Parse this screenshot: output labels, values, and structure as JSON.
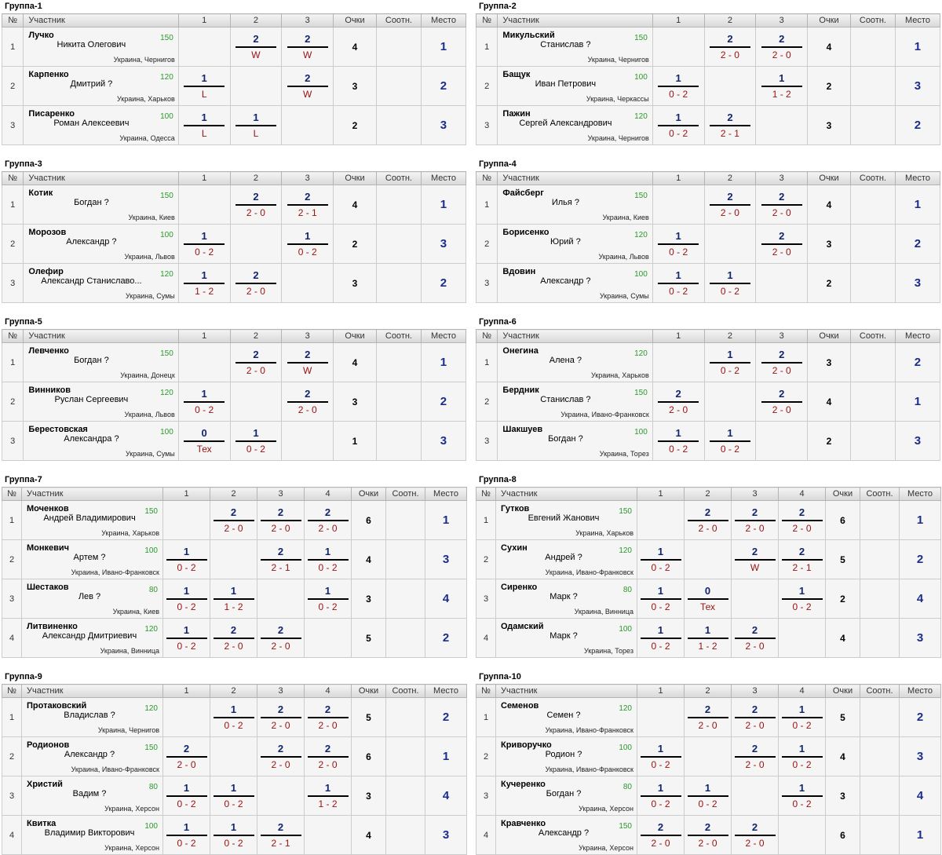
{
  "headers": {
    "num": "№",
    "player": "Участник",
    "points": "Очки",
    "ratio": "Соотн.",
    "place": "Место"
  },
  "groups": [
    {
      "title": "Группа-1",
      "cols": [
        "1",
        "2",
        "3"
      ],
      "players": [
        {
          "num": "1",
          "surname": "Лучко",
          "name": "Никита Олегович",
          "rating": "150",
          "city": "Украина, Чернигов",
          "results": [
            null,
            {
              "t": "2",
              "b": "W"
            },
            {
              "t": "2",
              "b": "W"
            }
          ],
          "points": "4",
          "ratio": "",
          "place": "1"
        },
        {
          "num": "2",
          "surname": "Карпенко",
          "name": "Дмитрий ?",
          "rating": "120",
          "city": "Украина, Харьков",
          "results": [
            {
              "t": "1",
              "b": "L"
            },
            null,
            {
              "t": "2",
              "b": "W"
            }
          ],
          "points": "3",
          "ratio": "",
          "place": "2"
        },
        {
          "num": "3",
          "surname": "Писаренко",
          "name": "Роман Алексеевич",
          "rating": "100",
          "city": "Украина, Одесса",
          "results": [
            {
              "t": "1",
              "b": "L"
            },
            {
              "t": "1",
              "b": "L"
            },
            null
          ],
          "points": "2",
          "ratio": "",
          "place": "3"
        }
      ]
    },
    {
      "title": "Группа-2",
      "cols": [
        "1",
        "2",
        "3"
      ],
      "players": [
        {
          "num": "1",
          "surname": "Микульский",
          "name": "Станислав ?",
          "rating": "150",
          "city": "Украина, Чернигов",
          "results": [
            null,
            {
              "t": "2",
              "b": "2 - 0"
            },
            {
              "t": "2",
              "b": "2 - 0"
            }
          ],
          "points": "4",
          "ratio": "",
          "place": "1"
        },
        {
          "num": "2",
          "surname": "Бащук",
          "name": "Иван Петрович",
          "rating": "100",
          "city": "Украина, Черкассы",
          "results": [
            {
              "t": "1",
              "b": "0 - 2"
            },
            null,
            {
              "t": "1",
              "b": "1 - 2"
            }
          ],
          "points": "2",
          "ratio": "",
          "place": "3"
        },
        {
          "num": "3",
          "surname": "Пажин",
          "name": "Сергей Александрович",
          "rating": "120",
          "city": "Украина, Чернигов",
          "results": [
            {
              "t": "1",
              "b": "0 - 2"
            },
            {
              "t": "2",
              "b": "2 - 1"
            },
            null
          ],
          "points": "3",
          "ratio": "",
          "place": "2"
        }
      ]
    },
    {
      "title": "Группа-3",
      "cols": [
        "1",
        "2",
        "3"
      ],
      "players": [
        {
          "num": "1",
          "surname": "Котик",
          "name": "Богдан ?",
          "rating": "150",
          "city": "Украина, Киев",
          "results": [
            null,
            {
              "t": "2",
              "b": "2 - 0"
            },
            {
              "t": "2",
              "b": "2 - 1"
            }
          ],
          "points": "4",
          "ratio": "",
          "place": "1"
        },
        {
          "num": "2",
          "surname": "Морозов",
          "name": "Александр ?",
          "rating": "100",
          "city": "Украина, Львов",
          "results": [
            {
              "t": "1",
              "b": "0 - 2"
            },
            null,
            {
              "t": "1",
              "b": "0 - 2"
            }
          ],
          "points": "2",
          "ratio": "",
          "place": "3"
        },
        {
          "num": "3",
          "surname": "Олефир",
          "name": "Александр Станиславо...",
          "rating": "120",
          "city": "Украина, Сумы",
          "results": [
            {
              "t": "1",
              "b": "1 - 2"
            },
            {
              "t": "2",
              "b": "2 - 0"
            },
            null
          ],
          "points": "3",
          "ratio": "",
          "place": "2"
        }
      ]
    },
    {
      "title": "Группа-4",
      "cols": [
        "1",
        "2",
        "3"
      ],
      "players": [
        {
          "num": "1",
          "surname": "Файсберг",
          "name": "Илья ?",
          "rating": "150",
          "city": "Украина, Киев",
          "results": [
            null,
            {
              "t": "2",
              "b": "2 - 0"
            },
            {
              "t": "2",
              "b": "2 - 0"
            }
          ],
          "points": "4",
          "ratio": "",
          "place": "1"
        },
        {
          "num": "2",
          "surname": "Борисенко",
          "name": "Юрий ?",
          "rating": "120",
          "city": "Украина, Львов",
          "results": [
            {
              "t": "1",
              "b": "0 - 2"
            },
            null,
            {
              "t": "2",
              "b": "2 - 0"
            }
          ],
          "points": "3",
          "ratio": "",
          "place": "2"
        },
        {
          "num": "3",
          "surname": "Вдовин",
          "name": "Александр ?",
          "rating": "100",
          "city": "Украина, Сумы",
          "results": [
            {
              "t": "1",
              "b": "0 - 2"
            },
            {
              "t": "1",
              "b": "0 - 2"
            },
            null
          ],
          "points": "2",
          "ratio": "",
          "place": "3"
        }
      ]
    },
    {
      "title": "Группа-5",
      "cols": [
        "1",
        "2",
        "3"
      ],
      "players": [
        {
          "num": "1",
          "surname": "Левченко",
          "name": "Богдан ?",
          "rating": "150",
          "city": "Украина, Донецк",
          "results": [
            null,
            {
              "t": "2",
              "b": "2 - 0"
            },
            {
              "t": "2",
              "b": "W"
            }
          ],
          "points": "4",
          "ratio": "",
          "place": "1"
        },
        {
          "num": "2",
          "surname": "Винников",
          "name": "Руслан Сергеевич",
          "rating": "120",
          "city": "Украина, Львов",
          "results": [
            {
              "t": "1",
              "b": "0 - 2"
            },
            null,
            {
              "t": "2",
              "b": "2 - 0"
            }
          ],
          "points": "3",
          "ratio": "",
          "place": "2"
        },
        {
          "num": "3",
          "surname": "Берестовская",
          "name": "Александра ?",
          "rating": "100",
          "city": "Украина, Сумы",
          "results": [
            {
              "t": "0",
              "b": "Тех"
            },
            {
              "t": "1",
              "b": "0 - 2"
            },
            null
          ],
          "points": "1",
          "ratio": "",
          "place": "3"
        }
      ]
    },
    {
      "title": "Группа-6",
      "cols": [
        "1",
        "2",
        "3"
      ],
      "players": [
        {
          "num": "1",
          "surname": "Онегина",
          "name": "Алена ?",
          "rating": "120",
          "city": "Украина, Харьков",
          "results": [
            null,
            {
              "t": "1",
              "b": "0 - 2"
            },
            {
              "t": "2",
              "b": "2 - 0"
            }
          ],
          "points": "3",
          "ratio": "",
          "place": "2"
        },
        {
          "num": "2",
          "surname": "Бердник",
          "name": "Станислав ?",
          "rating": "150",
          "city": "Украина, Ивано-Франковск",
          "results": [
            {
              "t": "2",
              "b": "2 - 0"
            },
            null,
            {
              "t": "2",
              "b": "2 - 0"
            }
          ],
          "points": "4",
          "ratio": "",
          "place": "1"
        },
        {
          "num": "3",
          "surname": "Шакшуев",
          "name": "Богдан ?",
          "rating": "100",
          "city": "Украина, Торез",
          "results": [
            {
              "t": "1",
              "b": "0 - 2"
            },
            {
              "t": "1",
              "b": "0 - 2"
            },
            null
          ],
          "points": "2",
          "ratio": "",
          "place": "3"
        }
      ]
    },
    {
      "title": "Группа-7",
      "cols": [
        "1",
        "2",
        "3",
        "4"
      ],
      "players": [
        {
          "num": "1",
          "surname": "Моченков",
          "name": "Андрей Владимирович",
          "rating": "150",
          "city": "Украина, Харьков",
          "results": [
            null,
            {
              "t": "2",
              "b": "2 - 0"
            },
            {
              "t": "2",
              "b": "2 - 0"
            },
            {
              "t": "2",
              "b": "2 - 0"
            }
          ],
          "points": "6",
          "ratio": "",
          "place": "1"
        },
        {
          "num": "2",
          "surname": "Монкевич",
          "name": "Артем ?",
          "rating": "100",
          "city": "Украина, Ивано-Франковск",
          "results": [
            {
              "t": "1",
              "b": "0 - 2"
            },
            null,
            {
              "t": "2",
              "b": "2 - 1"
            },
            {
              "t": "1",
              "b": "0 - 2"
            }
          ],
          "points": "4",
          "ratio": "",
          "place": "3"
        },
        {
          "num": "3",
          "surname": "Шестаков",
          "name": "Лев ?",
          "rating": "80",
          "city": "Украина, Киев",
          "results": [
            {
              "t": "1",
              "b": "0 - 2"
            },
            {
              "t": "1",
              "b": "1 - 2"
            },
            null,
            {
              "t": "1",
              "b": "0 - 2"
            }
          ],
          "points": "3",
          "ratio": "",
          "place": "4"
        },
        {
          "num": "4",
          "surname": "Литвиненко",
          "name": "Александр Дмитриевич",
          "rating": "120",
          "city": "Украина, Винница",
          "results": [
            {
              "t": "1",
              "b": "0 - 2"
            },
            {
              "t": "2",
              "b": "2 - 0"
            },
            {
              "t": "2",
              "b": "2 - 0"
            },
            null
          ],
          "points": "5",
          "ratio": "",
          "place": "2"
        }
      ]
    },
    {
      "title": "Группа-8",
      "cols": [
        "1",
        "2",
        "3",
        "4"
      ],
      "players": [
        {
          "num": "1",
          "surname": "Гутков",
          "name": "Евгений Жанович",
          "rating": "150",
          "city": "Украина, Харьков",
          "results": [
            null,
            {
              "t": "2",
              "b": "2 - 0"
            },
            {
              "t": "2",
              "b": "2 - 0"
            },
            {
              "t": "2",
              "b": "2 - 0"
            }
          ],
          "points": "6",
          "ratio": "",
          "place": "1"
        },
        {
          "num": "2",
          "surname": "Сухин",
          "name": "Андрей ?",
          "rating": "120",
          "city": "Украина, Ивано-Франковск",
          "results": [
            {
              "t": "1",
              "b": "0 - 2"
            },
            null,
            {
              "t": "2",
              "b": "W"
            },
            {
              "t": "2",
              "b": "2 - 1"
            }
          ],
          "points": "5",
          "ratio": "",
          "place": "2"
        },
        {
          "num": "3",
          "surname": "Сиренко",
          "name": "Марк ?",
          "rating": "80",
          "city": "Украина, Винница",
          "results": [
            {
              "t": "1",
              "b": "0 - 2"
            },
            {
              "t": "0",
              "b": "Тех"
            },
            null,
            {
              "t": "1",
              "b": "0 - 2"
            }
          ],
          "points": "2",
          "ratio": "",
          "place": "4"
        },
        {
          "num": "4",
          "surname": "Одамский",
          "name": "Марк ?",
          "rating": "100",
          "city": "Украина, Торез",
          "results": [
            {
              "t": "1",
              "b": "0 - 2"
            },
            {
              "t": "1",
              "b": "1 - 2"
            },
            {
              "t": "2",
              "b": "2 - 0"
            },
            null
          ],
          "points": "4",
          "ratio": "",
          "place": "3"
        }
      ]
    },
    {
      "title": "Группа-9",
      "cols": [
        "1",
        "2",
        "3",
        "4"
      ],
      "players": [
        {
          "num": "1",
          "surname": "Протаковский",
          "name": "Владислав ?",
          "rating": "120",
          "city": "Украина, Чернигов",
          "results": [
            null,
            {
              "t": "1",
              "b": "0 - 2"
            },
            {
              "t": "2",
              "b": "2 - 0"
            },
            {
              "t": "2",
              "b": "2 - 0"
            }
          ],
          "points": "5",
          "ratio": "",
          "place": "2"
        },
        {
          "num": "2",
          "surname": "Родионов",
          "name": "Александр ?",
          "rating": "150",
          "city": "Украина, Ивано-Франковск",
          "results": [
            {
              "t": "2",
              "b": "2 - 0"
            },
            null,
            {
              "t": "2",
              "b": "2 - 0"
            },
            {
              "t": "2",
              "b": "2 - 0"
            }
          ],
          "points": "6",
          "ratio": "",
          "place": "1"
        },
        {
          "num": "3",
          "surname": "Христий",
          "name": "Вадим ?",
          "rating": "80",
          "city": "Украина, Херсон",
          "results": [
            {
              "t": "1",
              "b": "0 - 2"
            },
            {
              "t": "1",
              "b": "0 - 2"
            },
            null,
            {
              "t": "1",
              "b": "1 - 2"
            }
          ],
          "points": "3",
          "ratio": "",
          "place": "4"
        },
        {
          "num": "4",
          "surname": "Квитка",
          "name": "Владимир Викторович",
          "rating": "100",
          "city": "Украина, Херсон",
          "results": [
            {
              "t": "1",
              "b": "0 - 2"
            },
            {
              "t": "1",
              "b": "0 - 2"
            },
            {
              "t": "2",
              "b": "2 - 1"
            },
            null
          ],
          "points": "4",
          "ratio": "",
          "place": "3"
        }
      ]
    },
    {
      "title": "Группа-10",
      "cols": [
        "1",
        "2",
        "3",
        "4"
      ],
      "players": [
        {
          "num": "1",
          "surname": "Семенов",
          "name": "Семен ?",
          "rating": "120",
          "city": "Украина, Ивано-Франковск",
          "results": [
            null,
            {
              "t": "2",
              "b": "2 - 0"
            },
            {
              "t": "2",
              "b": "2 - 0"
            },
            {
              "t": "1",
              "b": "0 - 2"
            }
          ],
          "points": "5",
          "ratio": "",
          "place": "2"
        },
        {
          "num": "2",
          "surname": "Криворучко",
          "name": "Родион ?",
          "rating": "100",
          "city": "Украина, Ивано-Франковск",
          "results": [
            {
              "t": "1",
              "b": "0 - 2"
            },
            null,
            {
              "t": "2",
              "b": "2 - 0"
            },
            {
              "t": "1",
              "b": "0 - 2"
            }
          ],
          "points": "4",
          "ratio": "",
          "place": "3"
        },
        {
          "num": "3",
          "surname": "Кучеренко",
          "name": "Богдан ?",
          "rating": "80",
          "city": "Украина, Херсон",
          "results": [
            {
              "t": "1",
              "b": "0 - 2"
            },
            {
              "t": "1",
              "b": "0 - 2"
            },
            null,
            {
              "t": "1",
              "b": "0 - 2"
            }
          ],
          "points": "3",
          "ratio": "",
          "place": "4"
        },
        {
          "num": "4",
          "surname": "Кравченко",
          "name": "Александр ?",
          "rating": "150",
          "city": "Украина, Херсон",
          "results": [
            {
              "t": "2",
              "b": "2 - 0"
            },
            {
              "t": "2",
              "b": "2 - 0"
            },
            {
              "t": "2",
              "b": "2 - 0"
            },
            null
          ],
          "points": "6",
          "ratio": "",
          "place": "1"
        }
      ]
    }
  ]
}
